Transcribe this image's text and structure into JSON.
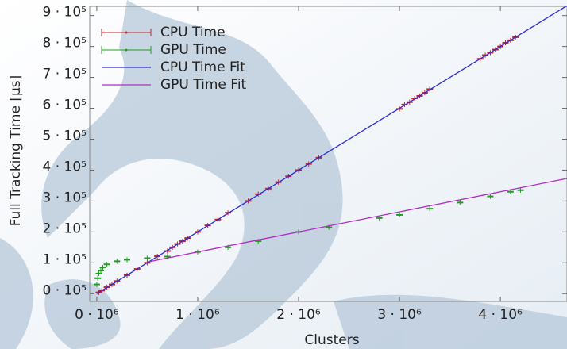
{
  "chart_data": {
    "type": "scatter",
    "x_label": "Clusters",
    "y_label": "Full Tracking Time [μs]",
    "xlim": [
      -70000,
      4660000
    ],
    "ylim": [
      -25000,
      930000
    ],
    "xticks": [
      {
        "value": 0,
        "label": "0 · 10⁶"
      },
      {
        "value": 1000000,
        "label": "1 · 10⁶"
      },
      {
        "value": 2000000,
        "label": "2 · 10⁶"
      },
      {
        "value": 3000000,
        "label": "3 · 10⁶"
      },
      {
        "value": 4000000,
        "label": "4 · 10⁶"
      }
    ],
    "yticks": [
      {
        "value": 0,
        "label": "0 · 10⁵"
      },
      {
        "value": 100000,
        "label": "1 · 10⁵"
      },
      {
        "value": 200000,
        "label": "2 · 10⁵"
      },
      {
        "value": 300000,
        "label": "3 · 10⁵"
      },
      {
        "value": 400000,
        "label": "4 · 10⁵"
      },
      {
        "value": 500000,
        "label": "5 · 10⁵"
      },
      {
        "value": 600000,
        "label": "6 · 10⁵"
      },
      {
        "value": 700000,
        "label": "7 · 10⁵"
      },
      {
        "value": 800000,
        "label": "8 · 10⁵"
      },
      {
        "value": 900000,
        "label": "9 · 10⁵"
      }
    ],
    "legend": "upper left",
    "series": [
      {
        "name": "CPU Time",
        "color": "#c0262c",
        "style": "points",
        "error": 8000,
        "x": [
          20000,
          50000,
          100000,
          150000,
          200000,
          300000,
          400000,
          500000,
          600000,
          700000,
          750000,
          800000,
          850000,
          900000,
          1000000,
          1100000,
          1200000,
          1300000,
          1500000,
          1600000,
          1700000,
          1800000,
          1900000,
          2000000,
          2100000,
          2200000,
          3000000,
          3050000,
          3100000,
          3150000,
          3200000,
          3250000,
          3300000,
          3800000,
          3850000,
          3900000,
          3950000,
          4000000,
          4050000,
          4100000,
          4150000
        ],
        "values": [
          4000,
          10000,
          21000,
          30000,
          41000,
          60000,
          80000,
          100000,
          121000,
          138000,
          150000,
          161000,
          170000,
          180000,
          200000,
          221000,
          240000,
          262000,
          300000,
          322000,
          340000,
          361000,
          380000,
          400000,
          420000,
          440000,
          598000,
          612000,
          620000,
          632000,
          640000,
          650000,
          662000,
          760000,
          772000,
          780000,
          790000,
          800000,
          812000,
          820000,
          830000
        ]
      },
      {
        "name": "GPU Time",
        "color": "#1f9e1f",
        "style": "points",
        "error": 8000,
        "x": [
          0,
          10000,
          20000,
          40000,
          60000,
          100000,
          200000,
          300000,
          500000,
          700000,
          1000000,
          1300000,
          1600000,
          2000000,
          2300000,
          2800000,
          3000000,
          3300000,
          3600000,
          3900000,
          4100000,
          4200000
        ],
        "values": [
          30000,
          50000,
          65000,
          75000,
          85000,
          95000,
          105000,
          110000,
          115000,
          120000,
          135000,
          150000,
          170000,
          200000,
          215000,
          245000,
          255000,
          275000,
          295000,
          315000,
          330000,
          335000
        ]
      },
      {
        "name": "CPU Time Fit",
        "color": "#2a2ad6",
        "style": "line",
        "x": [
          0,
          4660000
        ],
        "values": [
          0,
          932000
        ]
      },
      {
        "name": "GPU Time Fit",
        "color": "#b02cc0",
        "style": "line",
        "x": [
          500000,
          4660000
        ],
        "values": [
          102500,
          372900
        ]
      }
    ]
  }
}
